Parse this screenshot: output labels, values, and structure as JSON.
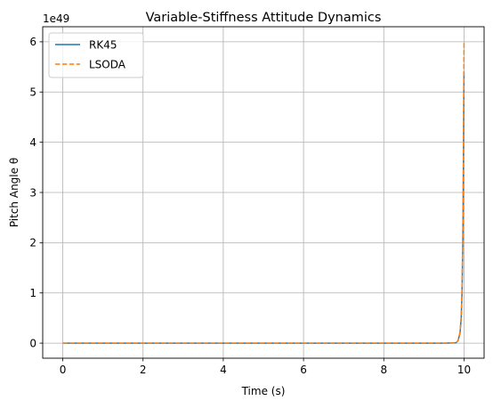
{
  "chart_data": {
    "type": "line",
    "title": "Variable-Stiffness Attitude Dynamics",
    "xlabel": "Time (s)",
    "ylabel": "Pitch Angle θ",
    "y_scale_label": "1e49",
    "y_scale": 1e+49,
    "xlim": [
      -0.5,
      10.5
    ],
    "ylim": [
      -0.3,
      6.3
    ],
    "x_ticks": [
      0,
      2,
      4,
      6,
      8,
      10
    ],
    "x_tick_labels": [
      "0",
      "2",
      "4",
      "6",
      "8",
      "10"
    ],
    "y_ticks": [
      0,
      1,
      2,
      3,
      4,
      5,
      6
    ],
    "y_tick_labels": [
      "0",
      "1",
      "2",
      "3",
      "4",
      "5",
      "6"
    ],
    "grid": true,
    "legend_position": "upper-left",
    "series": [
      {
        "name": "RK45",
        "color": "#1f77b4",
        "dash": "solid",
        "x": [
          0,
          2,
          4,
          6,
          8,
          9.5,
          9.8,
          9.85,
          9.9,
          9.93,
          9.95,
          9.97,
          9.98,
          9.99,
          10.0
        ],
        "y": [
          0,
          0,
          0,
          0,
          0,
          0,
          0.005,
          0.05,
          0.2,
          0.5,
          1.0,
          2.0,
          3.0,
          4.2,
          5.4
        ]
      },
      {
        "name": "LSODA",
        "color": "#ff7f0e",
        "dash": "dashed",
        "x": [
          0,
          2,
          4,
          6,
          8,
          9.5,
          9.8,
          9.85,
          9.9,
          9.93,
          9.95,
          9.97,
          9.98,
          9.99,
          10.0
        ],
        "y": [
          0,
          0,
          0,
          0,
          0,
          0,
          0.005,
          0.05,
          0.22,
          0.55,
          1.1,
          2.2,
          3.3,
          4.6,
          6.0
        ]
      }
    ]
  }
}
